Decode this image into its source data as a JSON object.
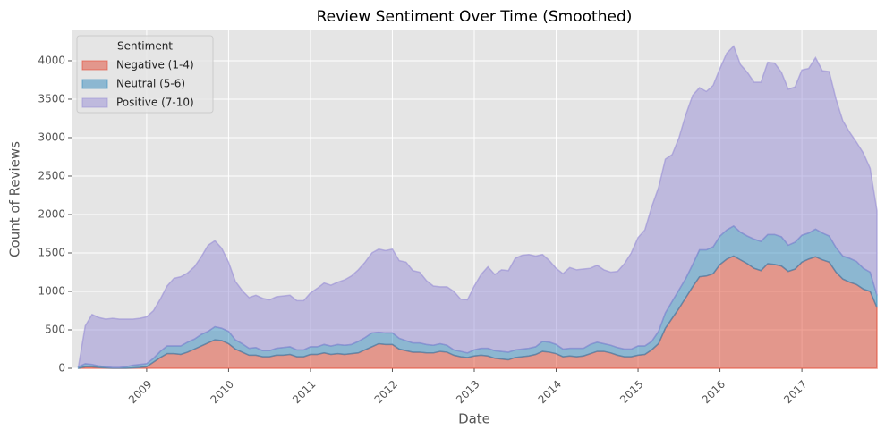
{
  "chart_data": {
    "type": "stacked_area",
    "title": "Review Sentiment Over Time (Smoothed)",
    "x_label": "Date",
    "y_label": "Count of Reviews",
    "legend_title": "Sentiment",
    "legend_position": "upper left",
    "grid": true,
    "xlim": [
      "2008-02",
      "2017-12"
    ],
    "xticks": [
      2009,
      2010,
      2011,
      2012,
      2013,
      2014,
      2015,
      2016,
      2017
    ],
    "ylim": [
      0,
      4395
    ],
    "yticks": [
      0,
      500,
      1000,
      1500,
      2000,
      2500,
      3000,
      3500,
      4000
    ],
    "x": [
      "2008-03",
      "2008-04",
      "2008-05",
      "2008-06",
      "2008-07",
      "2008-08",
      "2008-09",
      "2008-10",
      "2008-11",
      "2008-12",
      "2009-01",
      "2009-02",
      "2009-03",
      "2009-04",
      "2009-05",
      "2009-06",
      "2009-07",
      "2009-08",
      "2009-09",
      "2009-10",
      "2009-11",
      "2009-12",
      "2010-01",
      "2010-02",
      "2010-03",
      "2010-04",
      "2010-05",
      "2010-06",
      "2010-07",
      "2010-08",
      "2010-09",
      "2010-10",
      "2010-11",
      "2010-12",
      "2011-01",
      "2011-02",
      "2011-03",
      "2011-04",
      "2011-05",
      "2011-06",
      "2011-07",
      "2011-08",
      "2011-09",
      "2011-10",
      "2011-11",
      "2011-12",
      "2012-01",
      "2012-02",
      "2012-03",
      "2012-04",
      "2012-05",
      "2012-06",
      "2012-07",
      "2012-08",
      "2012-09",
      "2012-10",
      "2012-11",
      "2012-12",
      "2013-01",
      "2013-02",
      "2013-03",
      "2013-04",
      "2013-05",
      "2013-06",
      "2013-07",
      "2013-08",
      "2013-09",
      "2013-10",
      "2013-11",
      "2013-12",
      "2014-01",
      "2014-02",
      "2014-03",
      "2014-04",
      "2014-05",
      "2014-06",
      "2014-07",
      "2014-08",
      "2014-09",
      "2014-10",
      "2014-11",
      "2014-12",
      "2015-01",
      "2015-02",
      "2015-03",
      "2015-04",
      "2015-05",
      "2015-06",
      "2015-07",
      "2015-08",
      "2015-09",
      "2015-10",
      "2015-11",
      "2015-12",
      "2016-01",
      "2016-02",
      "2016-03",
      "2016-04",
      "2016-05",
      "2016-06",
      "2016-07",
      "2016-08",
      "2016-09",
      "2016-10",
      "2016-11",
      "2016-12",
      "2017-01",
      "2017-02",
      "2017-03",
      "2017-04",
      "2017-05",
      "2017-06",
      "2017-07",
      "2017-08",
      "2017-09",
      "2017-10",
      "2017-11",
      "2017-12"
    ],
    "series": [
      {
        "name": "Negative (1-4)",
        "color": "#E24A33",
        "values": [
          0,
          20,
          20,
          10,
          5,
          0,
          0,
          0,
          5,
          10,
          20,
          80,
          140,
          190,
          190,
          180,
          210,
          250,
          290,
          330,
          370,
          360,
          320,
          250,
          210,
          170,
          170,
          150,
          150,
          170,
          170,
          180,
          150,
          150,
          180,
          180,
          200,
          180,
          190,
          180,
          190,
          200,
          240,
          280,
          320,
          310,
          310,
          250,
          230,
          210,
          210,
          200,
          200,
          220,
          210,
          170,
          150,
          140,
          160,
          170,
          160,
          130,
          120,
          110,
          140,
          150,
          160,
          180,
          220,
          210,
          190,
          150,
          160,
          150,
          160,
          190,
          220,
          220,
          200,
          170,
          150,
          150,
          170,
          180,
          240,
          320,
          520,
          650,
          780,
          920,
          1060,
          1190,
          1200,
          1230,
          1350,
          1420,
          1460,
          1410,
          1360,
          1300,
          1270,
          1360,
          1350,
          1330,
          1260,
          1290,
          1380,
          1420,
          1450,
          1410,
          1380,
          1250,
          1160,
          1120,
          1090,
          1030,
          1000,
          790
        ]
      },
      {
        "name": "Neutral (5-6)",
        "color": "#348ABD",
        "values": [
          20,
          40,
          30,
          20,
          15,
          10,
          10,
          20,
          35,
          40,
          40,
          50,
          80,
          100,
          100,
          110,
          130,
          130,
          150,
          150,
          170,
          160,
          160,
          120,
          110,
          90,
          100,
          80,
          80,
          90,
          100,
          100,
          90,
          90,
          100,
          100,
          110,
          110,
          120,
          120,
          120,
          150,
          160,
          180,
          150,
          150,
          150,
          140,
          130,
          120,
          120,
          110,
          100,
          100,
          90,
          70,
          70,
          60,
          80,
          90,
          100,
          100,
          100,
          100,
          100,
          100,
          100,
          100,
          130,
          130,
          120,
          100,
          100,
          110,
          100,
          120,
          120,
          100,
          100,
          100,
          100,
          100,
          120,
          110,
          110,
          160,
          200,
          220,
          240,
          250,
          290,
          350,
          340,
          350,
          370,
          380,
          390,
          360,
          360,
          380,
          380,
          380,
          390,
          380,
          340,
          350,
          350,
          340,
          360,
          350,
          340,
          320,
          300,
          310,
          300,
          270,
          250,
          160
        ]
      },
      {
        "name": "Positive (7-10)",
        "color": "#988ED5",
        "values": [
          0,
          490,
          650,
          630,
          620,
          640,
          630,
          620,
          600,
          600,
          610,
          620,
          680,
          780,
          880,
          900,
          900,
          940,
          1010,
          1120,
          1120,
          1040,
          900,
          760,
          690,
          660,
          680,
          680,
          660,
          670,
          670,
          670,
          640,
          640,
          700,
          760,
          800,
          790,
          810,
          850,
          890,
          930,
          980,
          1040,
          1080,
          1070,
          1090,
          1010,
          1020,
          940,
          920,
          830,
          770,
          740,
          760,
          760,
          680,
          690,
          830,
          960,
          1060,
          990,
          1060,
          1060,
          1190,
          1220,
          1220,
          1180,
          1130,
          1060,
          990,
          980,
          1050,
          1020,
          1030,
          990,
          1000,
          960,
          950,
          990,
          1110,
          1250,
          1410,
          1510,
          1750,
          1870,
          2000,
          1910,
          1980,
          2130,
          2200,
          2110,
          2060,
          2100,
          2180,
          2300,
          2340,
          2180,
          2130,
          2040,
          2070,
          2240,
          2230,
          2140,
          2030,
          2020,
          2150,
          2140,
          2230,
          2110,
          2140,
          1930,
          1760,
          1640,
          1550,
          1500,
          1350,
          1100
        ]
      }
    ]
  }
}
